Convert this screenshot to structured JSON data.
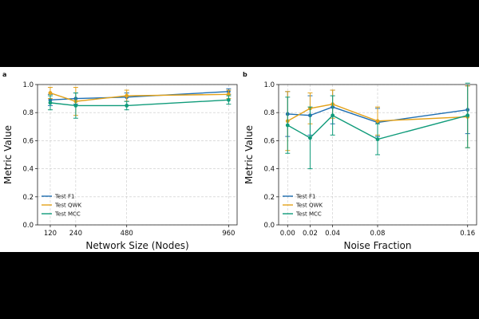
{
  "chart_data": [
    {
      "panel_label": "a",
      "type": "line",
      "xlabel": "Network Size (Nodes)",
      "ylabel": "Metric Value",
      "x": [
        120,
        240,
        480,
        960
      ],
      "xticks": [
        "120",
        "240",
        "480",
        "960"
      ],
      "xlim": [
        60,
        1000
      ],
      "ylim": [
        0.0,
        1.0
      ],
      "yticks": [
        "0.0",
        "0.2",
        "0.4",
        "0.6",
        "0.8",
        "1.0"
      ],
      "grid": true,
      "legend_position": "lower-left",
      "series": [
        {
          "name": "Test  F1",
          "color": "#1f6fb2",
          "values": [
            0.89,
            0.9,
            0.91,
            0.95
          ],
          "errors": [
            0.04,
            0.04,
            0.03,
            0.02
          ]
        },
        {
          "name": "Test  QWK",
          "color": "#e3a21a",
          "values": [
            0.94,
            0.88,
            0.92,
            0.93
          ],
          "errors": [
            0.04,
            0.1,
            0.04,
            0.03
          ]
        },
        {
          "name": "Test  MCC",
          "color": "#0f9b7a",
          "values": [
            0.87,
            0.85,
            0.85,
            0.89
          ],
          "errors": [
            0.05,
            0.09,
            0.03,
            0.03
          ]
        }
      ]
    },
    {
      "panel_label": "b",
      "type": "line",
      "xlabel": "Noise Fraction",
      "ylabel": "Metric Value",
      "x": [
        0.0,
        0.02,
        0.04,
        0.08,
        0.16
      ],
      "xticks": [
        "0.00",
        "0.02",
        "0.04",
        "0.08",
        "0.16"
      ],
      "xlim": [
        -0.008,
        0.168
      ],
      "ylim": [
        0.0,
        1.0
      ],
      "yticks": [
        "0.0",
        "0.2",
        "0.4",
        "0.6",
        "0.8",
        "1.0"
      ],
      "grid": true,
      "legend_position": "lower-left",
      "series": [
        {
          "name": "Test  F1",
          "color": "#1f6fb2",
          "values": [
            0.79,
            0.78,
            0.84,
            0.73,
            0.82
          ],
          "errors": [
            0.16,
            0.14,
            0.12,
            0.1,
            0.17
          ]
        },
        {
          "name": "Test  QWK",
          "color": "#e3a21a",
          "values": [
            0.74,
            0.83,
            0.86,
            0.74,
            0.77
          ],
          "errors": [
            0.21,
            0.11,
            0.1,
            0.1,
            0.22
          ]
        },
        {
          "name": "Test  MCC",
          "color": "#0f9b7a",
          "values": [
            0.71,
            0.62,
            0.78,
            0.61,
            0.78
          ],
          "errors": [
            0.2,
            0.22,
            0.14,
            0.11,
            0.23
          ]
        }
      ]
    }
  ]
}
